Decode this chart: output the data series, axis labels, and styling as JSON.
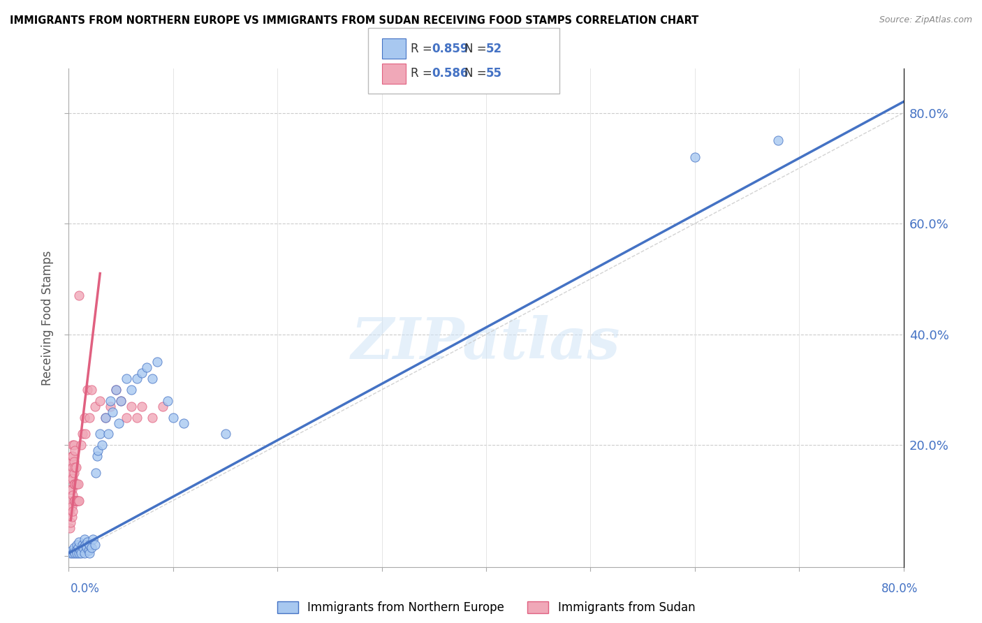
{
  "title": "IMMIGRANTS FROM NORTHERN EUROPE VS IMMIGRANTS FROM SUDAN RECEIVING FOOD STAMPS CORRELATION CHART",
  "source": "Source: ZipAtlas.com",
  "ylabel": "Receiving Food Stamps",
  "watermark": "ZIPatlas",
  "legend_r_blue": "R = 0.859",
  "legend_n_blue": "N = 52",
  "legend_r_pink": "R = 0.586",
  "legend_n_pink": "N = 55",
  "legend_label_blue": "Immigrants from Northern Europe",
  "legend_label_pink": "Immigrants from Sudan",
  "xlim": [
    0.0,
    0.8
  ],
  "ylim": [
    -0.02,
    0.88
  ],
  "blue_color": "#A8C8F0",
  "pink_color": "#F0A8B8",
  "line_blue": "#4472C4",
  "line_pink": "#E06080",
  "line_dashed_color": "#C8C8C8",
  "blue_scatter": [
    [
      0.002,
      0.005
    ],
    [
      0.003,
      0.01
    ],
    [
      0.004,
      0.005
    ],
    [
      0.005,
      0.008
    ],
    [
      0.005,
      0.015
    ],
    [
      0.006,
      0.005
    ],
    [
      0.007,
      0.01
    ],
    [
      0.008,
      0.005
    ],
    [
      0.008,
      0.02
    ],
    [
      0.009,
      0.015
    ],
    [
      0.01,
      0.005
    ],
    [
      0.01,
      0.025
    ],
    [
      0.011,
      0.01
    ],
    [
      0.012,
      0.005
    ],
    [
      0.013,
      0.02
    ],
    [
      0.014,
      0.015
    ],
    [
      0.015,
      0.005
    ],
    [
      0.015,
      0.03
    ],
    [
      0.016,
      0.02
    ],
    [
      0.017,
      0.015
    ],
    [
      0.018,
      0.025
    ],
    [
      0.019,
      0.01
    ],
    [
      0.02,
      0.005
    ],
    [
      0.02,
      0.02
    ],
    [
      0.022,
      0.015
    ],
    [
      0.023,
      0.03
    ],
    [
      0.025,
      0.02
    ],
    [
      0.026,
      0.15
    ],
    [
      0.027,
      0.18
    ],
    [
      0.028,
      0.19
    ],
    [
      0.03,
      0.22
    ],
    [
      0.032,
      0.2
    ],
    [
      0.035,
      0.25
    ],
    [
      0.038,
      0.22
    ],
    [
      0.04,
      0.28
    ],
    [
      0.042,
      0.26
    ],
    [
      0.045,
      0.3
    ],
    [
      0.048,
      0.24
    ],
    [
      0.05,
      0.28
    ],
    [
      0.055,
      0.32
    ],
    [
      0.06,
      0.3
    ],
    [
      0.065,
      0.32
    ],
    [
      0.07,
      0.33
    ],
    [
      0.075,
      0.34
    ],
    [
      0.08,
      0.32
    ],
    [
      0.085,
      0.35
    ],
    [
      0.095,
      0.28
    ],
    [
      0.1,
      0.25
    ],
    [
      0.11,
      0.24
    ],
    [
      0.15,
      0.22
    ],
    [
      0.6,
      0.72
    ],
    [
      0.68,
      0.75
    ]
  ],
  "pink_scatter": [
    [
      0.001,
      0.05
    ],
    [
      0.001,
      0.08
    ],
    [
      0.002,
      0.06
    ],
    [
      0.002,
      0.1
    ],
    [
      0.002,
      0.12
    ],
    [
      0.002,
      0.14
    ],
    [
      0.003,
      0.07
    ],
    [
      0.003,
      0.09
    ],
    [
      0.003,
      0.12
    ],
    [
      0.003,
      0.15
    ],
    [
      0.003,
      0.17
    ],
    [
      0.003,
      0.18
    ],
    [
      0.004,
      0.08
    ],
    [
      0.004,
      0.11
    ],
    [
      0.004,
      0.14
    ],
    [
      0.004,
      0.16
    ],
    [
      0.004,
      0.18
    ],
    [
      0.004,
      0.2
    ],
    [
      0.005,
      0.1
    ],
    [
      0.005,
      0.13
    ],
    [
      0.005,
      0.15
    ],
    [
      0.005,
      0.17
    ],
    [
      0.005,
      0.2
    ],
    [
      0.006,
      0.1
    ],
    [
      0.006,
      0.13
    ],
    [
      0.006,
      0.16
    ],
    [
      0.006,
      0.19
    ],
    [
      0.007,
      0.1
    ],
    [
      0.007,
      0.13
    ],
    [
      0.007,
      0.16
    ],
    [
      0.008,
      0.1
    ],
    [
      0.008,
      0.13
    ],
    [
      0.009,
      0.1
    ],
    [
      0.009,
      0.13
    ],
    [
      0.01,
      0.1
    ],
    [
      0.01,
      0.47
    ],
    [
      0.012,
      0.2
    ],
    [
      0.013,
      0.22
    ],
    [
      0.015,
      0.25
    ],
    [
      0.016,
      0.22
    ],
    [
      0.018,
      0.3
    ],
    [
      0.02,
      0.25
    ],
    [
      0.022,
      0.3
    ],
    [
      0.025,
      0.27
    ],
    [
      0.03,
      0.28
    ],
    [
      0.035,
      0.25
    ],
    [
      0.04,
      0.27
    ],
    [
      0.045,
      0.3
    ],
    [
      0.05,
      0.28
    ],
    [
      0.055,
      0.25
    ],
    [
      0.06,
      0.27
    ],
    [
      0.065,
      0.25
    ],
    [
      0.07,
      0.27
    ],
    [
      0.08,
      0.25
    ],
    [
      0.09,
      0.27
    ]
  ],
  "blue_line_x": [
    0.0,
    0.8
  ],
  "blue_line_y": [
    0.005,
    0.82
  ],
  "pink_line_x": [
    0.002,
    0.03
  ],
  "pink_line_y": [
    0.065,
    0.51
  ],
  "diag_line_x": [
    0.0,
    0.8
  ],
  "diag_line_y": [
    0.0,
    0.8
  ]
}
